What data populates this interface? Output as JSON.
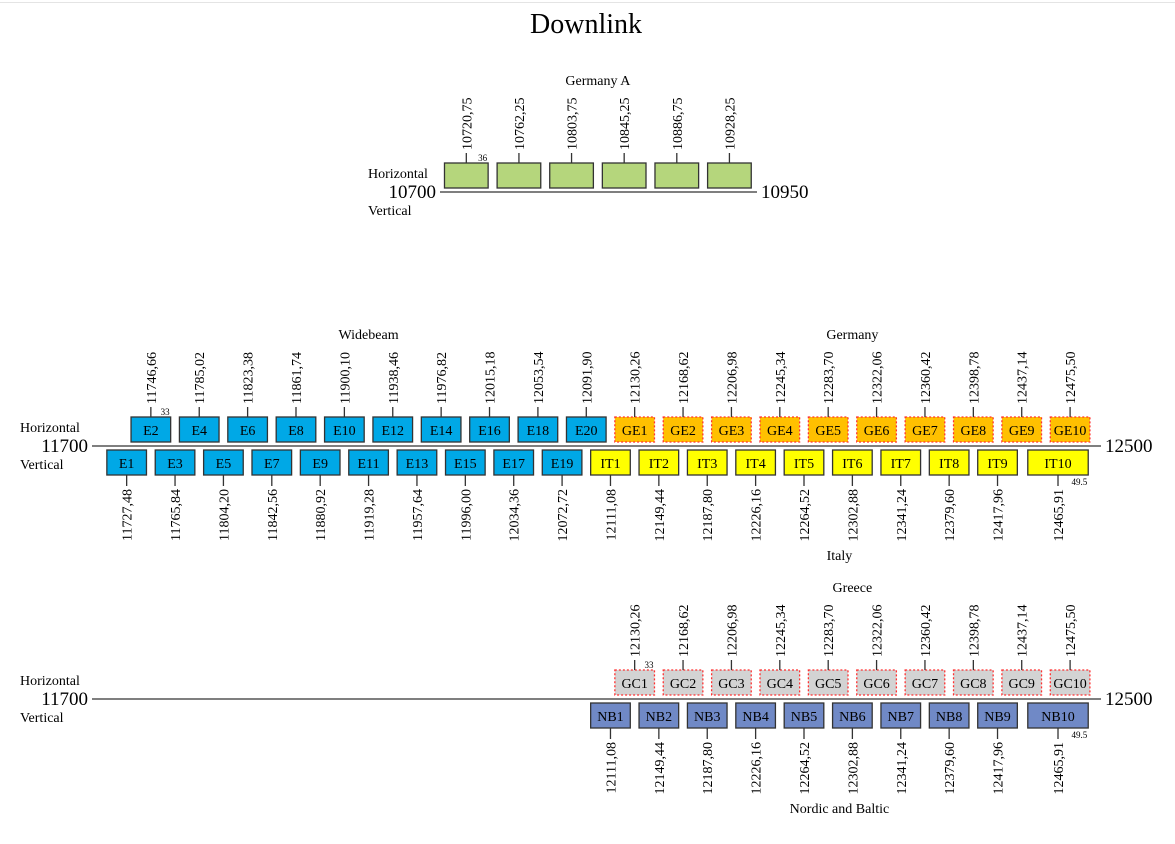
{
  "title": "Downlink",
  "colors": {
    "green": "#b5d67c",
    "blue": "#00a8e6",
    "yellow": "#ffff00",
    "orange": "#ffc000",
    "gray": "#d3d3d3",
    "nordic": "#7089c6",
    "dashed_border": "#ff3030",
    "border": "#333333"
  },
  "sections": [
    {
      "id": "germany-a",
      "min": 10700,
      "max": 10950,
      "min_label": "10700",
      "max_label": "10950",
      "horizontal_label": "Horizontal",
      "vertical_label": "Vertical",
      "groups": [
        {
          "title": "Germany A",
          "pol": "H",
          "title_side": "top",
          "fill": "green",
          "dashed": false,
          "channels": [
            {
              "label": "",
              "freq": 10720.75,
              "freq_label": "10720,75",
              "bw": 36,
              "width_label": "36"
            },
            {
              "label": "",
              "freq": 10762.25,
              "freq_label": "10762,25",
              "bw": 36
            },
            {
              "label": "",
              "freq": 10803.75,
              "freq_label": "10803,75",
              "bw": 36
            },
            {
              "label": "",
              "freq": 10845.25,
              "freq_label": "10845,25",
              "bw": 36
            },
            {
              "label": "",
              "freq": 10886.75,
              "freq_label": "10886,75",
              "bw": 36
            },
            {
              "label": "",
              "freq": 10928.25,
              "freq_label": "10928,25",
              "bw": 36
            }
          ]
        }
      ]
    },
    {
      "id": "widebeam-germany-italy",
      "min": 11700,
      "max": 12500,
      "min_label": "11700",
      "max_label": "12500",
      "horizontal_label": "Horizontal",
      "vertical_label": "Vertical",
      "groups": [
        {
          "title": "Widebeam",
          "pol": "H",
          "title_side": "top",
          "fill": "blue",
          "dashed": false,
          "channels": [
            {
              "label": "E2",
              "freq": 11746.66,
              "freq_label": "11746,66",
              "bw": 33,
              "width_label": "33"
            },
            {
              "label": "E4",
              "freq": 11785.02,
              "freq_label": "11785,02",
              "bw": 33
            },
            {
              "label": "E6",
              "freq": 11823.38,
              "freq_label": "11823,38",
              "bw": 33
            },
            {
              "label": "E8",
              "freq": 11861.74,
              "freq_label": "11861,74",
              "bw": 33
            },
            {
              "label": "E10",
              "freq": 11900.1,
              "freq_label": "11900,10",
              "bw": 33
            },
            {
              "label": "E12",
              "freq": 11938.46,
              "freq_label": "11938,46",
              "bw": 33
            },
            {
              "label": "E14",
              "freq": 11976.82,
              "freq_label": "11976,82",
              "bw": 33
            },
            {
              "label": "E16",
              "freq": 12015.18,
              "freq_label": "12015,18",
              "bw": 33
            },
            {
              "label": "E18",
              "freq": 12053.54,
              "freq_label": "12053,54",
              "bw": 33
            },
            {
              "label": "E20",
              "freq": 12091.9,
              "freq_label": "12091,90",
              "bw": 33
            }
          ]
        },
        {
          "title": "",
          "pol": "V",
          "title_side": "none",
          "fill": "blue",
          "dashed": false,
          "channels": [
            {
              "label": "E1",
              "freq": 11727.48,
              "freq_label": "11727,48",
              "bw": 33
            },
            {
              "label": "E3",
              "freq": 11765.84,
              "freq_label": "11765,84",
              "bw": 33
            },
            {
              "label": "E5",
              "freq": 11804.2,
              "freq_label": "11804,20",
              "bw": 33
            },
            {
              "label": "E7",
              "freq": 11842.56,
              "freq_label": "11842,56",
              "bw": 33
            },
            {
              "label": "E9",
              "freq": 11880.92,
              "freq_label": "11880,92",
              "bw": 33
            },
            {
              "label": "E11",
              "freq": 11919.28,
              "freq_label": "11919,28",
              "bw": 33
            },
            {
              "label": "E13",
              "freq": 11957.64,
              "freq_label": "11957,64",
              "bw": 33
            },
            {
              "label": "E15",
              "freq": 11996.0,
              "freq_label": "11996,00",
              "bw": 33
            },
            {
              "label": "E17",
              "freq": 12034.36,
              "freq_label": "12034,36",
              "bw": 33
            },
            {
              "label": "E19",
              "freq": 12072.72,
              "freq_label": "12072,72",
              "bw": 33
            }
          ]
        },
        {
          "title": "Germany",
          "pol": "H",
          "title_side": "top",
          "fill": "orange",
          "dashed": true,
          "channels": [
            {
              "label": "GE1",
              "freq": 12130.26,
              "freq_label": "12130,26",
              "bw": 33
            },
            {
              "label": "GE2",
              "freq": 12168.62,
              "freq_label": "12168,62",
              "bw": 33
            },
            {
              "label": "GE3",
              "freq": 12206.98,
              "freq_label": "12206,98",
              "bw": 33
            },
            {
              "label": "GE4",
              "freq": 12245.34,
              "freq_label": "12245,34",
              "bw": 33
            },
            {
              "label": "GE5",
              "freq": 12283.7,
              "freq_label": "12283,70",
              "bw": 33
            },
            {
              "label": "GE6",
              "freq": 12322.06,
              "freq_label": "12322,06",
              "bw": 33
            },
            {
              "label": "GE7",
              "freq": 12360.42,
              "freq_label": "12360,42",
              "bw": 33
            },
            {
              "label": "GE8",
              "freq": 12398.78,
              "freq_label": "12398,78",
              "bw": 33
            },
            {
              "label": "GE9",
              "freq": 12437.14,
              "freq_label": "12437,14",
              "bw": 33
            },
            {
              "label": "GE10",
              "freq": 12475.5,
              "freq_label": "12475,50",
              "bw": 33
            }
          ]
        },
        {
          "title": "Italy",
          "pol": "V",
          "title_side": "bottom",
          "fill": "yellow",
          "dashed": false,
          "channels": [
            {
              "label": "IT1",
              "freq": 12111.08,
              "freq_label": "12111,08",
              "bw": 33
            },
            {
              "label": "IT2",
              "freq": 12149.44,
              "freq_label": "12149,44",
              "bw": 33
            },
            {
              "label": "IT3",
              "freq": 12187.8,
              "freq_label": "12187,80",
              "bw": 33
            },
            {
              "label": "IT4",
              "freq": 12226.16,
              "freq_label": "12226,16",
              "bw": 33
            },
            {
              "label": "IT5",
              "freq": 12264.52,
              "freq_label": "12264,52",
              "bw": 33
            },
            {
              "label": "IT6",
              "freq": 12302.88,
              "freq_label": "12302,88",
              "bw": 33
            },
            {
              "label": "IT7",
              "freq": 12341.24,
              "freq_label": "12341,24",
              "bw": 33
            },
            {
              "label": "IT8",
              "freq": 12379.6,
              "freq_label": "12379,60",
              "bw": 33
            },
            {
              "label": "IT9",
              "freq": 12417.96,
              "freq_label": "12417,96",
              "bw": 33
            },
            {
              "label": "IT10",
              "freq": 12465.91,
              "freq_label": "12465,91",
              "bw": 49.5,
              "width_label": "49.5"
            }
          ]
        }
      ]
    },
    {
      "id": "greece-nordic",
      "min": 11700,
      "max": 12500,
      "min_label": "11700",
      "max_label": "12500",
      "horizontal_label": "Horizontal",
      "vertical_label": "Vertical",
      "groups": [
        {
          "title": "Greece",
          "pol": "H",
          "title_side": "top",
          "fill": "gray",
          "dashed": true,
          "channels": [
            {
              "label": "GC1",
              "freq": 12130.26,
              "freq_label": "12130,26",
              "bw": 33,
              "width_label": "33"
            },
            {
              "label": "GC2",
              "freq": 12168.62,
              "freq_label": "12168,62",
              "bw": 33
            },
            {
              "label": "GC3",
              "freq": 12206.98,
              "freq_label": "12206,98",
              "bw": 33
            },
            {
              "label": "GC4",
              "freq": 12245.34,
              "freq_label": "12245,34",
              "bw": 33
            },
            {
              "label": "GC5",
              "freq": 12283.7,
              "freq_label": "12283,70",
              "bw": 33
            },
            {
              "label": "GC6",
              "freq": 12322.06,
              "freq_label": "12322,06",
              "bw": 33
            },
            {
              "label": "GC7",
              "freq": 12360.42,
              "freq_label": "12360,42",
              "bw": 33
            },
            {
              "label": "GC8",
              "freq": 12398.78,
              "freq_label": "12398,78",
              "bw": 33
            },
            {
              "label": "GC9",
              "freq": 12437.14,
              "freq_label": "12437,14",
              "bw": 33
            },
            {
              "label": "GC10",
              "freq": 12475.5,
              "freq_label": "12475,50",
              "bw": 33
            }
          ]
        },
        {
          "title": "Nordic and Baltic",
          "pol": "V",
          "title_side": "bottom",
          "fill": "nordic",
          "dashed": false,
          "channels": [
            {
              "label": "NB1",
              "freq": 12111.08,
              "freq_label": "12111,08",
              "bw": 33
            },
            {
              "label": "NB2",
              "freq": 12149.44,
              "freq_label": "12149,44",
              "bw": 33
            },
            {
              "label": "NB3",
              "freq": 12187.8,
              "freq_label": "12187,80",
              "bw": 33
            },
            {
              "label": "NB4",
              "freq": 12226.16,
              "freq_label": "12226,16",
              "bw": 33
            },
            {
              "label": "NB5",
              "freq": 12264.52,
              "freq_label": "12264,52",
              "bw": 33
            },
            {
              "label": "NB6",
              "freq": 12302.88,
              "freq_label": "12302,88",
              "bw": 33
            },
            {
              "label": "NB7",
              "freq": 12341.24,
              "freq_label": "12341,24",
              "bw": 33
            },
            {
              "label": "NB8",
              "freq": 12379.6,
              "freq_label": "12379,60",
              "bw": 33
            },
            {
              "label": "NB9",
              "freq": 12417.96,
              "freq_label": "12417,96",
              "bw": 33
            },
            {
              "label": "NB10",
              "freq": 12465.91,
              "freq_label": "12465,91",
              "bw": 49.5,
              "width_label": "49.5"
            }
          ]
        }
      ]
    }
  ]
}
